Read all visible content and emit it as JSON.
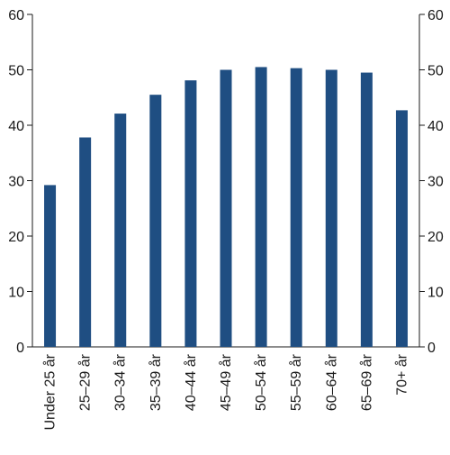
{
  "chart_data": {
    "type": "bar",
    "title": "",
    "xlabel": "",
    "ylabel": "",
    "categories": [
      "Under 25 år",
      "25–29 år",
      "30–34 år",
      "35–39 år",
      "40–44 år",
      "45–49 år",
      "50–54 år",
      "55–59 år",
      "60–64 år",
      "65–69 år",
      "70+ år"
    ],
    "values": [
      29.2,
      37.8,
      42.1,
      45.5,
      48.1,
      50.0,
      50.5,
      50.3,
      50.0,
      49.5,
      42.7
    ],
    "ylim": [
      0,
      60
    ],
    "yticks": [
      "0",
      "10",
      "20",
      "30",
      "40",
      "50",
      "60"
    ],
    "y_axis_both_sides": true,
    "grid": false,
    "bar_color": "#1f4e82"
  }
}
